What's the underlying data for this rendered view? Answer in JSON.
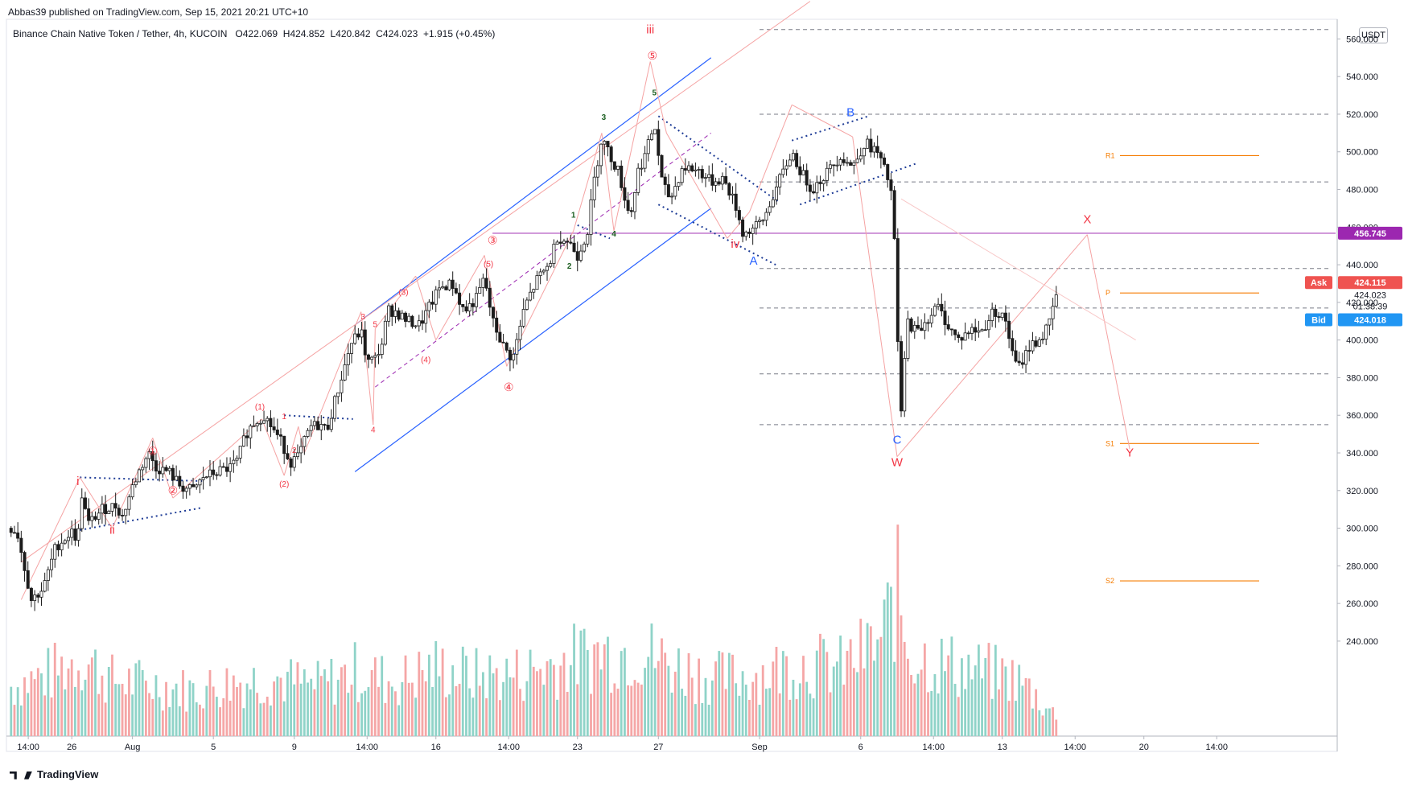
{
  "header": {
    "published_line": "Abbas39 published on TradingView.com, Sep 15, 2021 20:21 UTC+10",
    "symbol": "Binance Chain Native Token / Tether, 4h, KUCOIN",
    "open": "O422.069",
    "high": "H424.852",
    "low": "L420.842",
    "close": "C424.023",
    "change": "+1.915 (+0.45%)",
    "currency": "USDT"
  },
  "footer": {
    "brand": "TradingView"
  },
  "colors": {
    "bull": "#26a69a",
    "bear": "#ef5350",
    "channel": "#2962ff",
    "dotted": "#1e3c96",
    "wave_red": "#f23645",
    "wave_blue": "#2962ff",
    "wave_green": "#1b5e20",
    "pivot": "#f57c00",
    "horizontal_magenta": "#ba68c8",
    "zigzag": "#f5a3a3",
    "price_badge": "#9c27b0",
    "ask": "#ef5350",
    "bid": "#2196f3"
  },
  "chart_data": {
    "type": "candlestick",
    "timeframe": "4h",
    "exchange": "KUCOIN",
    "ylim": [
      225,
      570
    ],
    "y_ticks": [
      240,
      260,
      280,
      300,
      320,
      340,
      360,
      380,
      400,
      420,
      440,
      460,
      480,
      500,
      520,
      540,
      560
    ],
    "x_labels": [
      {
        "day": 0.85,
        "label": "14:00"
      },
      {
        "day": 3.0,
        "label": "26"
      },
      {
        "day": 6.0,
        "label": "Aug"
      },
      {
        "day": 10.0,
        "label": "5"
      },
      {
        "day": 14.0,
        "label": "9"
      },
      {
        "day": 17.6,
        "label": "14:00"
      },
      {
        "day": 21.0,
        "label": "16"
      },
      {
        "day": 24.6,
        "label": "14:00"
      },
      {
        "day": 28.0,
        "label": "23"
      },
      {
        "day": 32.0,
        "label": "27"
      },
      {
        "day": 37.0,
        "label": "Sep"
      },
      {
        "day": 42.0,
        "label": "6"
      },
      {
        "day": 45.6,
        "label": "14:00"
      },
      {
        "day": 49.0,
        "label": "13"
      },
      {
        "day": 52.6,
        "label": "14:00"
      },
      {
        "day": 56.0,
        "label": "20"
      },
      {
        "day": 59.6,
        "label": "14:00"
      }
    ],
    "price_path": [
      [
        0,
        300
      ],
      [
        0.3,
        298
      ],
      [
        1,
        262
      ],
      [
        1.6,
        268
      ],
      [
        2.2,
        290
      ],
      [
        3,
        298
      ],
      [
        3.3,
        294
      ],
      [
        3.5,
        318
      ],
      [
        3.8,
        302
      ],
      [
        4.5,
        310
      ],
      [
        5.2,
        312
      ],
      [
        5.5,
        306
      ],
      [
        6,
        322
      ],
      [
        6.4,
        332
      ],
      [
        6.8,
        340
      ],
      [
        7.2,
        332
      ],
      [
        7.8,
        330
      ],
      [
        8.4,
        322
      ],
      [
        9,
        320
      ],
      [
        9.5,
        327
      ],
      [
        10.2,
        330
      ],
      [
        10.8,
        332
      ],
      [
        11.2,
        336
      ],
      [
        11.6,
        350
      ],
      [
        12,
        356
      ],
      [
        12.5,
        360
      ],
      [
        13,
        352
      ],
      [
        13.4,
        345
      ],
      [
        13.8,
        335
      ],
      [
        14.2,
        338
      ],
      [
        14.8,
        354
      ],
      [
        15.3,
        355
      ],
      [
        15.6,
        352
      ],
      [
        16.2,
        375
      ],
      [
        16.8,
        398
      ],
      [
        17.3,
        405
      ],
      [
        17.6,
        388
      ],
      [
        18,
        390
      ],
      [
        18.4,
        400
      ],
      [
        18.6,
        416
      ],
      [
        19,
        415
      ],
      [
        19.6,
        410
      ],
      [
        20.2,
        408
      ],
      [
        20.6,
        416
      ],
      [
        21.2,
        428
      ],
      [
        21.8,
        430
      ],
      [
        22.4,
        415
      ],
      [
        23,
        422
      ],
      [
        23.4,
        433
      ],
      [
        23.8,
        410
      ],
      [
        24.4,
        395
      ],
      [
        24.8,
        390
      ],
      [
        25.4,
        418
      ],
      [
        26,
        432
      ],
      [
        26.6,
        440
      ],
      [
        27,
        455
      ],
      [
        27.6,
        452
      ],
      [
        28,
        445
      ],
      [
        28.5,
        458
      ],
      [
        28.8,
        483
      ],
      [
        29.2,
        508
      ],
      [
        29.6,
        498
      ],
      [
        30,
        490
      ],
      [
        30.6,
        465
      ],
      [
        31,
        490
      ],
      [
        31.4,
        500
      ],
      [
        31.8,
        515
      ],
      [
        32.2,
        482
      ],
      [
        32.6,
        475
      ],
      [
        33.2,
        492
      ],
      [
        34,
        490
      ],
      [
        34.6,
        484
      ],
      [
        35.2,
        486
      ],
      [
        35.8,
        472
      ],
      [
        36.2,
        456
      ],
      [
        36.8,
        460
      ],
      [
        37.2,
        464
      ],
      [
        37.6,
        475
      ],
      [
        38,
        485
      ],
      [
        38.6,
        500
      ],
      [
        39,
        490
      ],
      [
        39.6,
        480
      ],
      [
        40.4,
        490
      ],
      [
        41,
        498
      ],
      [
        41.6,
        492
      ],
      [
        42.2,
        505
      ],
      [
        42.8,
        500
      ],
      [
        43.3,
        487
      ],
      [
        43.6,
        475
      ],
      [
        43.8,
        405
      ],
      [
        44,
        362
      ],
      [
        44.3,
        410
      ],
      [
        44.8,
        404
      ],
      [
        45.2,
        410
      ],
      [
        45.8,
        418
      ],
      [
        46.3,
        408
      ],
      [
        46.8,
        400
      ],
      [
        47.4,
        405
      ],
      [
        48,
        405
      ],
      [
        48.6,
        416
      ],
      [
        49.2,
        410
      ],
      [
        49.5,
        392
      ],
      [
        49.8,
        385
      ],
      [
        50.3,
        396
      ],
      [
        51,
        402
      ],
      [
        51.4,
        410
      ],
      [
        51.6,
        424
      ]
    ],
    "volume_path": [
      [
        0,
        24
      ],
      [
        2,
        30
      ],
      [
        3.5,
        38
      ],
      [
        5,
        27
      ],
      [
        7,
        25
      ],
      [
        9,
        22
      ],
      [
        11,
        26
      ],
      [
        13,
        28
      ],
      [
        15,
        24
      ],
      [
        17,
        31
      ],
      [
        19,
        26
      ],
      [
        21,
        33
      ],
      [
        23,
        29
      ],
      [
        25,
        30
      ],
      [
        27,
        35
      ],
      [
        29,
        40
      ],
      [
        31,
        42
      ],
      [
        33,
        33
      ],
      [
        35,
        28
      ],
      [
        37,
        30
      ],
      [
        39,
        35
      ],
      [
        41,
        33
      ],
      [
        43,
        45
      ],
      [
        43.8,
        70
      ],
      [
        44.4,
        40
      ],
      [
        46,
        35
      ],
      [
        48,
        31
      ],
      [
        49.6,
        28
      ],
      [
        50.4,
        22
      ],
      [
        51.6,
        10
      ]
    ],
    "price_labels": [
      {
        "label": "Ask",
        "price": 424.115,
        "text": "424.115"
      },
      {
        "label": "Last",
        "price": 424.023,
        "text": "424.023"
      },
      {
        "label": "Countdown",
        "text": "01:38:39"
      },
      {
        "label": "Bid",
        "price": 424.018,
        "text": "424.018"
      },
      {
        "label": "Level",
        "price": 456.745,
        "text": "456.745"
      }
    ],
    "horizontal_levels": [
      {
        "price": 565,
        "style": "dashed"
      },
      {
        "price": 520,
        "style": "dashed"
      },
      {
        "price": 484,
        "style": "dashed"
      },
      {
        "price": 438,
        "style": "dashed"
      },
      {
        "price": 417,
        "style": "dashed"
      },
      {
        "price": 382,
        "style": "dashed"
      },
      {
        "price": 355,
        "style": "dashed"
      },
      {
        "price": 456.745,
        "style": "magenta"
      }
    ],
    "pivots": [
      {
        "label": "R1",
        "price": 498
      },
      {
        "label": "P",
        "price": 425
      },
      {
        "label": "S1",
        "price": 345
      },
      {
        "label": "S2",
        "price": 272
      }
    ],
    "wave_labels": [
      {
        "text": "i",
        "day": 3.3,
        "price": 323,
        "color": "red"
      },
      {
        "text": "ii",
        "day": 5.0,
        "price": 297,
        "color": "red"
      },
      {
        "text": "iii",
        "day": 31.6,
        "price": 563,
        "color": "red"
      },
      {
        "text": "iv",
        "day": 35.8,
        "price": 449,
        "color": "red"
      },
      {
        "text": "①",
        "day": 7.0,
        "price": 339,
        "color": "red"
      },
      {
        "text": "②",
        "day": 8.0,
        "price": 318,
        "color": "red"
      },
      {
        "text": "③",
        "day": 23.8,
        "price": 451,
        "color": "red"
      },
      {
        "text": "④",
        "day": 24.6,
        "price": 373,
        "color": "red"
      },
      {
        "text": "⑤",
        "day": 31.7,
        "price": 549,
        "color": "red"
      },
      {
        "text": "(1)",
        "day": 12.3,
        "price": 363,
        "color": "red"
      },
      {
        "text": "(2)",
        "day": 13.5,
        "price": 322,
        "color": "red"
      },
      {
        "text": "(3)",
        "day": 19.4,
        "price": 424,
        "color": "red"
      },
      {
        "text": "(4)",
        "day": 20.5,
        "price": 388,
        "color": "red"
      },
      {
        "text": "(5)",
        "day": 23.6,
        "price": 439,
        "color": "red"
      },
      {
        "text": "1",
        "day": 13.5,
        "price": 358,
        "color": "red"
      },
      {
        "text": "2",
        "day": 14.0,
        "price": 340,
        "color": "red"
      },
      {
        "text": "3",
        "day": 17.4,
        "price": 411,
        "color": "red"
      },
      {
        "text": "4",
        "day": 17.9,
        "price": 351,
        "color": "red"
      },
      {
        "text": "5",
        "day": 18.0,
        "price": 407,
        "color": "red"
      },
      {
        "text": "1",
        "day": 27.8,
        "price": 465,
        "color": "green"
      },
      {
        "text": "2",
        "day": 27.6,
        "price": 438,
        "color": "green"
      },
      {
        "text": "3",
        "day": 29.3,
        "price": 517,
        "color": "green"
      },
      {
        "text": "4",
        "day": 29.8,
        "price": 455,
        "color": "green"
      },
      {
        "text": "5",
        "day": 31.8,
        "price": 530,
        "color": "green"
      },
      {
        "text": "A",
        "day": 36.7,
        "price": 440,
        "color": "blue"
      },
      {
        "text": "B",
        "day": 41.5,
        "price": 519,
        "color": "blue"
      },
      {
        "text": "C",
        "day": 43.8,
        "price": 345,
        "color": "blue"
      },
      {
        "text": "W",
        "day": 43.8,
        "price": 333,
        "color": "red"
      },
      {
        "text": "X",
        "day": 53.2,
        "price": 462,
        "color": "red"
      },
      {
        "text": "Y",
        "day": 55.3,
        "price": 338,
        "color": "red"
      }
    ]
  }
}
